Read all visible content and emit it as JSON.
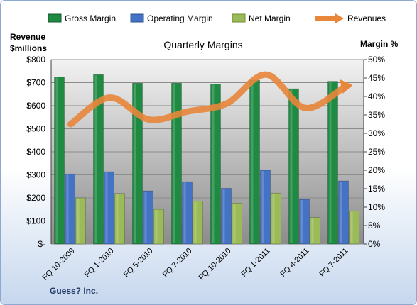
{
  "chart_data": {
    "type": "bar",
    "title": "Quarterly Margins",
    "left_axis_label": [
      "Revenue",
      "$millions"
    ],
    "right_axis_label": "Margin %",
    "footer": "Guess? Inc.",
    "categories": [
      "FQ 10-2009",
      "FQ 1-2010",
      "FQ 5-2010",
      "FQ 7-2010",
      "FQ 10-2010",
      "FQ 1-2011",
      "FQ 4-2011",
      "FQ 7-2011"
    ],
    "left_axis": {
      "min": 0,
      "max": 800,
      "step": 100,
      "tick_labels": [
        "$-",
        "$100",
        "$200",
        "$300",
        "$400",
        "$500",
        "$600",
        "$700",
        "$800"
      ]
    },
    "right_axis": {
      "min": 0,
      "max": 50,
      "step": 5,
      "tick_labels": [
        "0%",
        "5%",
        "10%",
        "15%",
        "20%",
        "25%",
        "30%",
        "35%",
        "40%",
        "45%",
        "50%"
      ]
    },
    "series": [
      {
        "name": "Gross Margin",
        "kind": "bar",
        "axis": "right",
        "color": "#1E8A42",
        "values": [
          45.3,
          45.9,
          43.6,
          43.6,
          43.4,
          44.4,
          42.1,
          44.1
        ]
      },
      {
        "name": "Operating Margin",
        "kind": "bar",
        "axis": "right",
        "color": "#4472C4",
        "values": [
          19.0,
          19.6,
          14.4,
          16.9,
          15.1,
          20.0,
          12.1,
          17.1
        ]
      },
      {
        "name": "Net Margin",
        "kind": "bar",
        "axis": "right",
        "color": "#9BBB59",
        "values": [
          12.5,
          13.7,
          9.4,
          11.6,
          11.1,
          13.8,
          7.2,
          8.9
        ]
      },
      {
        "name": "Revenues",
        "kind": "line",
        "axis": "left",
        "color": "#E8863A",
        "values": [
          520,
          635,
          540,
          575,
          610,
          735,
          590,
          680
        ]
      }
    ],
    "legend_position": "top",
    "grid": true
  }
}
